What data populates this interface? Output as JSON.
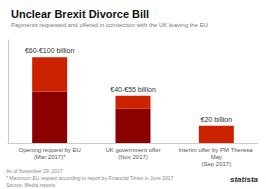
{
  "chart_data": {
    "type": "bar",
    "title": "Unclear Brexit Divorce Bill",
    "subtitle": "Payments requested and offered in connection with the UK leaving the EU",
    "categories": [
      "Opening request by EU\n(Mar 2017)*",
      "UK government offer\n(Nov 2017)",
      "Interim offer by PM Theresa May\n(Sep 2017)"
    ],
    "series": [
      {
        "colors": [
          "#8B0000",
          "#8B0000",
          "#CC2200"
        ],
        "values": [
          60,
          40,
          20
        ]
      },
      {
        "colors": [
          "#CC2200",
          "#CC2200",
          "#CC2200"
        ],
        "values": [
          40,
          15,
          null
        ]
      }
    ],
    "stacked": true,
    "annotations": [
      "€60-€100 billion",
      "€40-€55 billion",
      "€20 billion"
    ],
    "ylim": [
      0,
      120
    ],
    "tick_labels": "x",
    "grid": false,
    "footnotes": [
      "As of November 29, 2017",
      "* Maximum EU request according to report by Financial Times in June 2017",
      "Source: Media reports"
    ],
    "logo": "statista"
  }
}
